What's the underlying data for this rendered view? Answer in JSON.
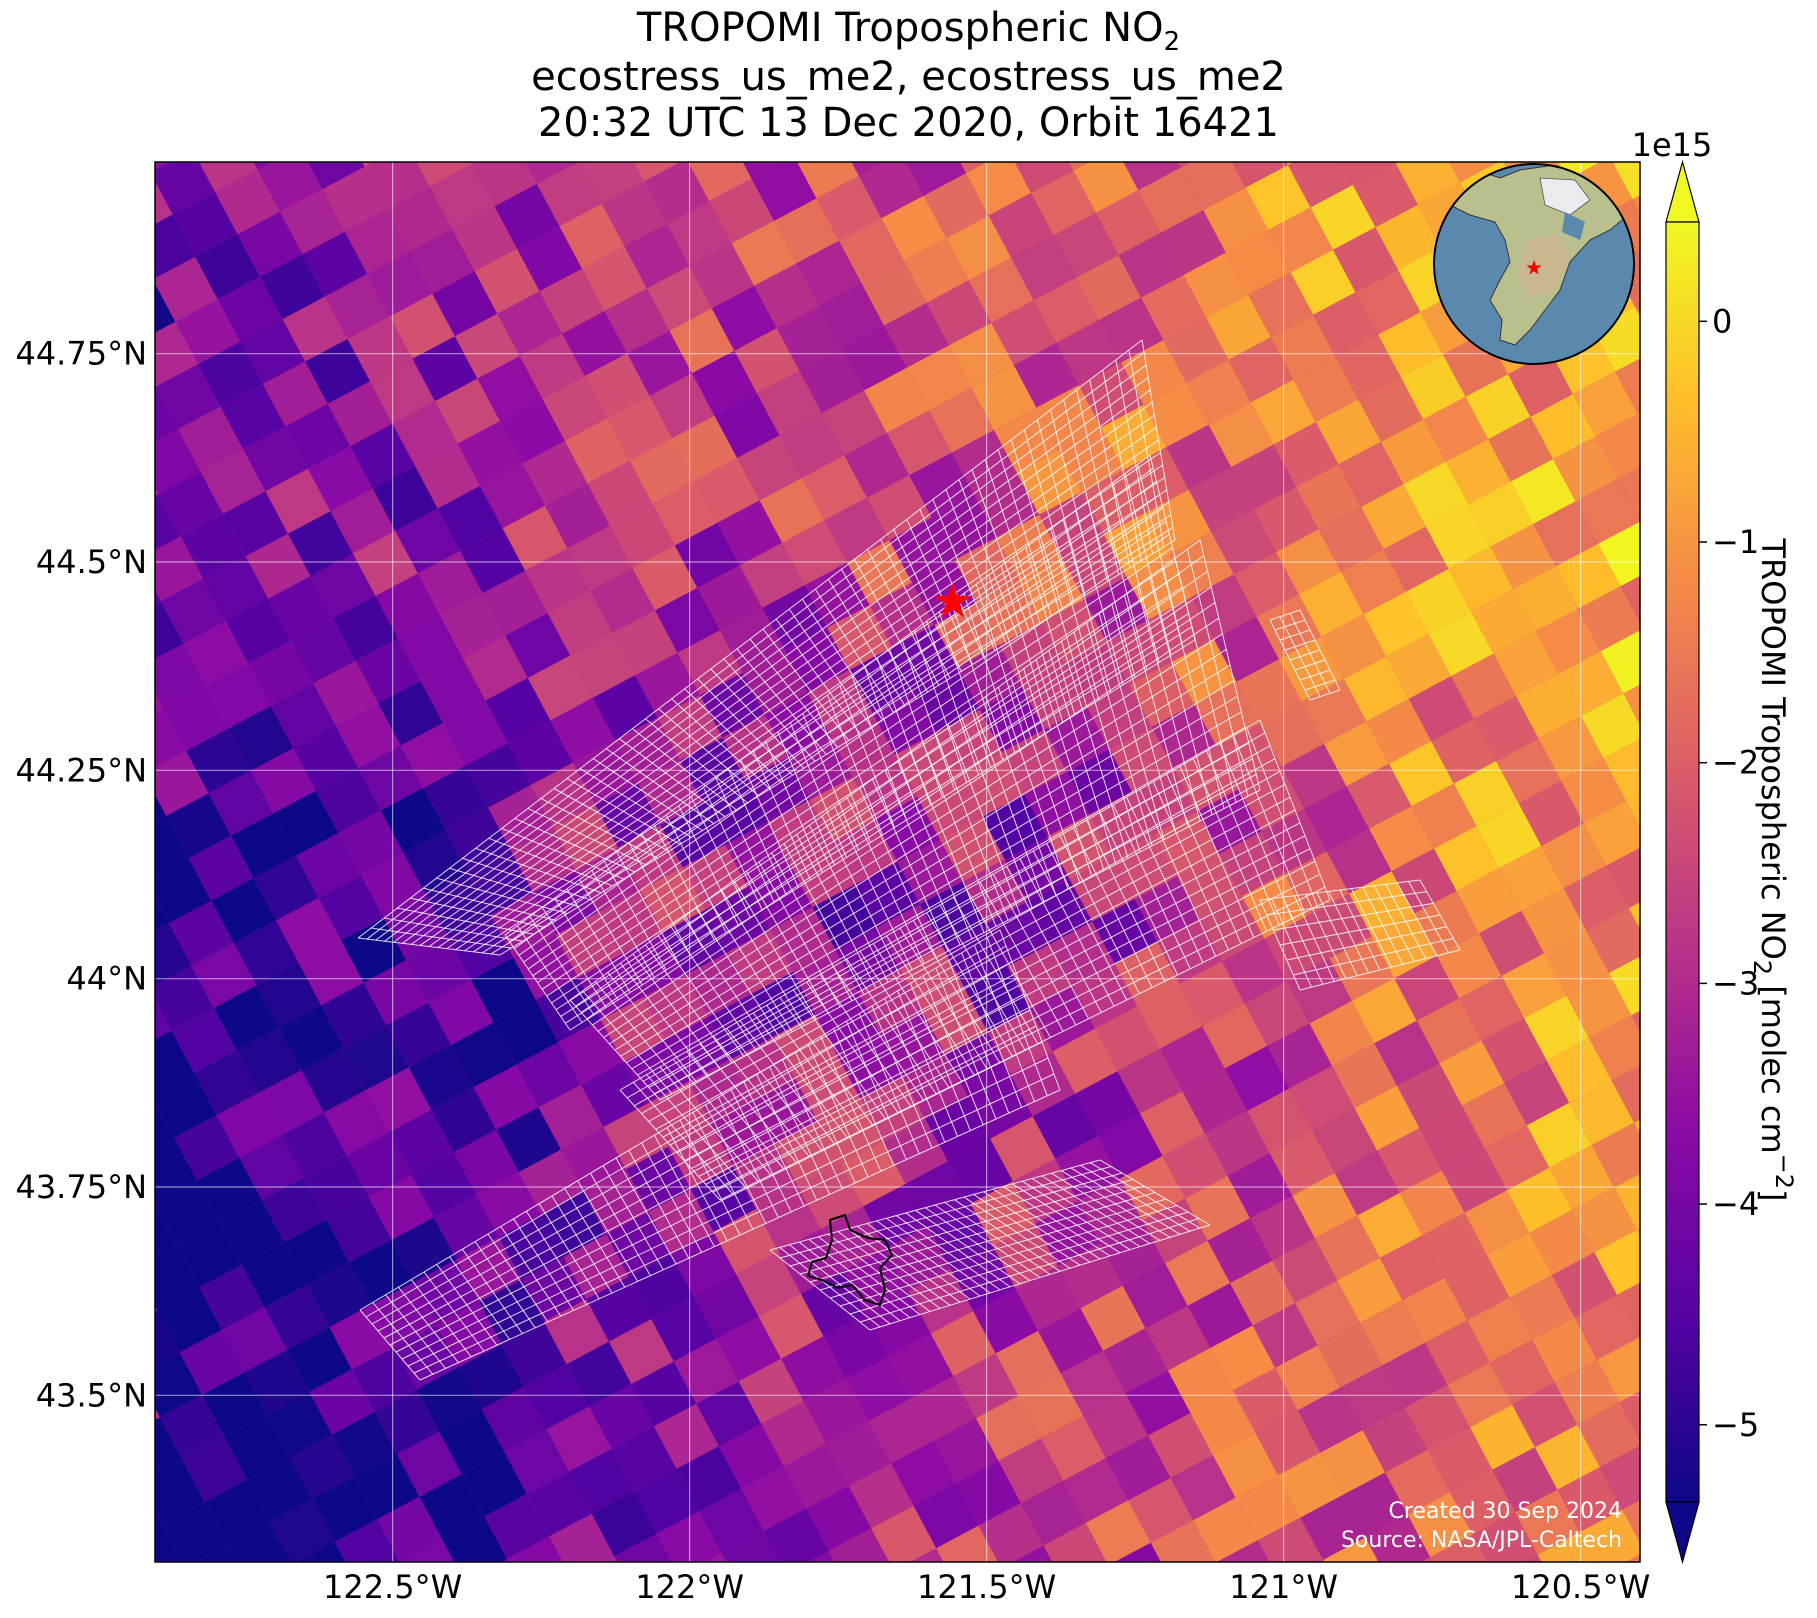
{
  "title": {
    "line1_prefix": "TROPOMI Tropospheric NO",
    "line1_sub": "2",
    "line2": "ecostress_us_me2, ecostress_us_me2",
    "line3": "20:32 UTC 13 Dec 2020, Orbit 16421"
  },
  "map": {
    "lon_range": [
      -122.9,
      -120.4
    ],
    "lat_range": [
      43.3,
      44.98
    ],
    "lon_ticks": [
      {
        "value": -122.5,
        "label": "122.5°W"
      },
      {
        "value": -122.0,
        "label": "122°W"
      },
      {
        "value": -121.5,
        "label": "121.5°W"
      },
      {
        "value": -121.0,
        "label": "121°W"
      },
      {
        "value": -120.5,
        "label": "120.5°W"
      }
    ],
    "lat_ticks": [
      {
        "value": 44.75,
        "label": "44.75°N"
      },
      {
        "value": 44.5,
        "label": "44.5°N"
      },
      {
        "value": 44.25,
        "label": "44.25°N"
      },
      {
        "value": 44.0,
        "label": "44°N"
      },
      {
        "value": 43.75,
        "label": "43.75°N"
      },
      {
        "value": 43.5,
        "label": "43.5°N"
      }
    ],
    "gridlines": true,
    "site_marker": {
      "lon": -121.557,
      "lat": 44.452,
      "color": "#ff0000"
    },
    "inset_globe": {
      "position": "top-right",
      "ocean_color": "#5b89ad",
      "land_color": "#b9c08d"
    },
    "credit_line1": "Created 30 Sep 2024",
    "credit_line2": "Source: NASA/JPL-Caltech"
  },
  "colorbar": {
    "label_prefix": "TROPOMI Tropospheric NO",
    "label_sub": "2",
    "label_units": " [molec cm",
    "label_exp": "−2",
    "label_close": "]",
    "scale_label": "1e15",
    "min": -5.35,
    "max": 0.45,
    "ticks": [
      {
        "value": 0,
        "label": "0"
      },
      {
        "value": -1,
        "label": "−1"
      },
      {
        "value": -2,
        "label": "−2"
      },
      {
        "value": -3,
        "label": "−3"
      },
      {
        "value": -4,
        "label": "−4"
      },
      {
        "value": -5,
        "label": "−5"
      }
    ],
    "colormap": [
      "#0d0887",
      "#5402a3",
      "#8b0aa5",
      "#b93289",
      "#db5c68",
      "#f48849",
      "#febd2a",
      "#f0f921"
    ],
    "extend": "both"
  }
}
